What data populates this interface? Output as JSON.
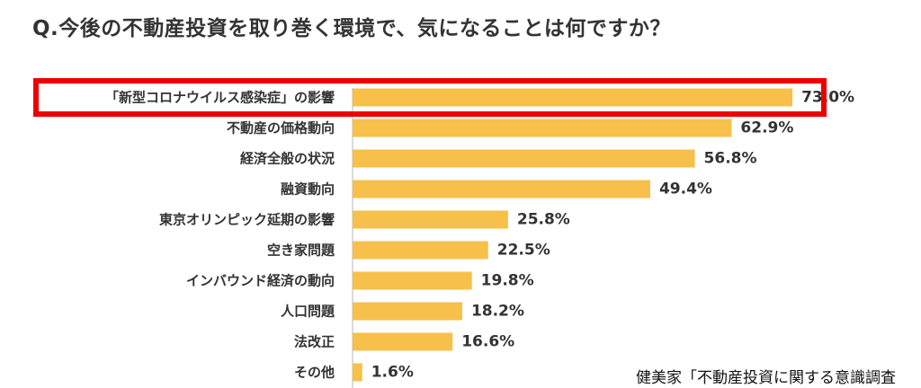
{
  "question": "Q.今後の不動産投資を取り巻く環境で、気になることは何ですか？",
  "source": "健美家「不動産投資に関する意識調査",
  "colors": {
    "bar": "#f7c04a",
    "highlight": "#ee0000",
    "axis": "#cfcfcf",
    "text": "#333333"
  },
  "chart_data": {
    "type": "bar",
    "orientation": "horizontal",
    "categories": [
      "「新型コロナウイルス感染症」の影響",
      "不動産の価格動向",
      "経済全般の状況",
      "融資動向",
      "東京オリンピック延期の影響",
      "空き家問題",
      "インバウンド経済の動向",
      "人口問題",
      "法改正",
      "その他"
    ],
    "values": [
      73.0,
      62.9,
      56.8,
      49.4,
      25.8,
      22.5,
      19.8,
      18.2,
      16.6,
      1.6
    ],
    "value_labels": [
      "73.0%",
      "62.9%",
      "56.8%",
      "49.4%",
      "25.8%",
      "22.5%",
      "19.8%",
      "18.2%",
      "16.6%",
      "1.6%"
    ],
    "highlighted_category": "「新型コロナウイルス感染症」の影響",
    "xlim": [
      0,
      100
    ],
    "grid": false
  }
}
